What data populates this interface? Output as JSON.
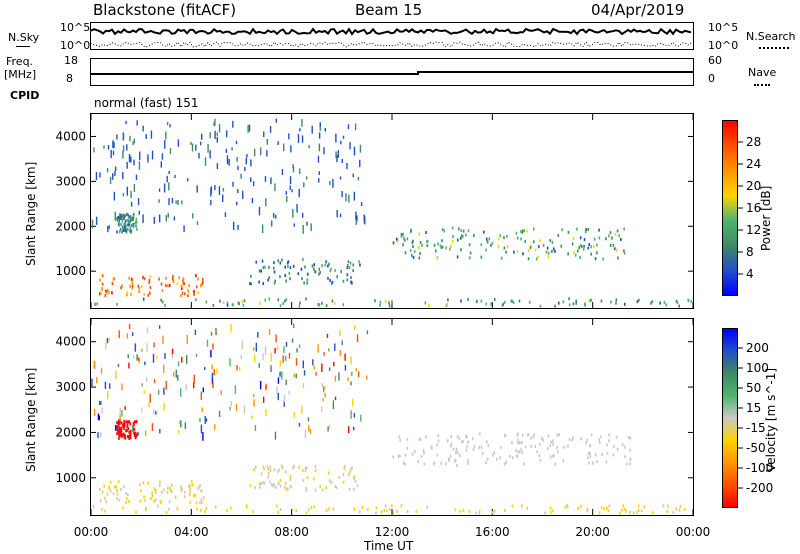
{
  "header": {
    "station": "Blackstone (fitACF)",
    "beam": "Beam 15",
    "date": "04/Apr/2019"
  },
  "noise_panel": {
    "left_label": "N.Sky",
    "right_label": "N.Search",
    "left_ticks": [
      "10^5",
      "10^0"
    ],
    "right_ticks": [
      "10^5",
      "10^0"
    ]
  },
  "freq_panel": {
    "left_label_1": "Freq.",
    "left_label_2": "[MHz]",
    "right_label": "Nave",
    "left_ticks": [
      "18",
      "8"
    ],
    "right_ticks": [
      "60",
      "0"
    ]
  },
  "cpid": {
    "label": "CPID",
    "value": "normal (fast) 151"
  },
  "colors": {
    "low_scatter": "#ffffff",
    "power_scale": [
      "#0000ff",
      "#2050c8",
      "#3c8c64",
      "#50b46e",
      "#ffd200",
      "#ff9600",
      "#ff5000",
      "#ff0000"
    ],
    "velocity_scale": [
      "#0000ff",
      "#2050c8",
      "#3c8c64",
      "#50b46e",
      "#c8c8c8",
      "#ffd200",
      "#ff9600",
      "#ff5000",
      "#ff0000"
    ]
  },
  "chart_data": [
    {
      "type": "heatmap",
      "title": "",
      "quantity": "Power",
      "xlabel": "",
      "ylabel": "Slant Range [km]",
      "colorbar_label": "Power [dB]",
      "colorbar_ticks": [
        "28",
        "24",
        "20",
        "16",
        "12",
        "8",
        "4"
      ],
      "colorbar_range": [
        0,
        32
      ],
      "xlim": [
        0,
        24
      ],
      "ylim": [
        180,
        4500
      ],
      "y_ticks": [
        1000,
        2000,
        3000,
        4000
      ],
      "x_ticks": [
        "00:00",
        "04:00",
        "08:00",
        "12:00",
        "16:00",
        "20:00",
        "00:00"
      ],
      "features": [
        {
          "name": "E-region band",
          "t": [
            0,
            24
          ],
          "r": [
            250,
            420
          ],
          "power": 12
        },
        {
          "name": "morning F echoes",
          "t": [
            0.3,
            4.5
          ],
          "r": [
            480,
            950
          ],
          "power": 24
        },
        {
          "name": "midday echoes",
          "t": [
            6.3,
            10.7
          ],
          "r": [
            750,
            1300
          ],
          "power": 9
        },
        {
          "name": "afternoon arc",
          "t": [
            12.0,
            21.5
          ],
          "r": [
            1300,
            2000
          ],
          "power": 12
        },
        {
          "name": "early spot",
          "t": [
            1.0,
            1.8
          ],
          "r": [
            1900,
            2300
          ],
          "power": 10
        }
      ]
    },
    {
      "type": "heatmap",
      "title": "",
      "quantity": "Velocity",
      "xlabel": "Time UT",
      "ylabel": "Slant Range [km]",
      "colorbar_label": "Velocity [m s^-1]",
      "colorbar_ticks": [
        "200",
        "100",
        "50",
        "15",
        "-15",
        "-50",
        "-100",
        "-200"
      ],
      "colorbar_range": [
        -250,
        250
      ],
      "xlim": [
        0,
        24
      ],
      "ylim": [
        180,
        4500
      ],
      "y_ticks": [
        1000,
        2000,
        3000,
        4000
      ],
      "x_ticks": [
        "00:00",
        "04:00",
        "08:00",
        "12:00",
        "16:00",
        "20:00",
        "00:00"
      ],
      "features": [
        {
          "name": "E-region band",
          "t": [
            0,
            24
          ],
          "r": [
            250,
            420
          ],
          "velocity": -40
        },
        {
          "name": "morning F echoes",
          "t": [
            0.3,
            4.5
          ],
          "r": [
            480,
            950
          ],
          "velocity": -30
        },
        {
          "name": "midday echoes",
          "t": [
            6.3,
            10.7
          ],
          "r": [
            750,
            1300
          ],
          "velocity": -20
        },
        {
          "name": "afternoon arc",
          "t": [
            12.0,
            21.5
          ],
          "r": [
            1300,
            2000
          ],
          "velocity": 0
        },
        {
          "name": "early spot",
          "t": [
            1.0,
            1.8
          ],
          "r": [
            1900,
            2300
          ],
          "velocity": -220
        }
      ]
    }
  ],
  "time_axis_label": "Time UT"
}
